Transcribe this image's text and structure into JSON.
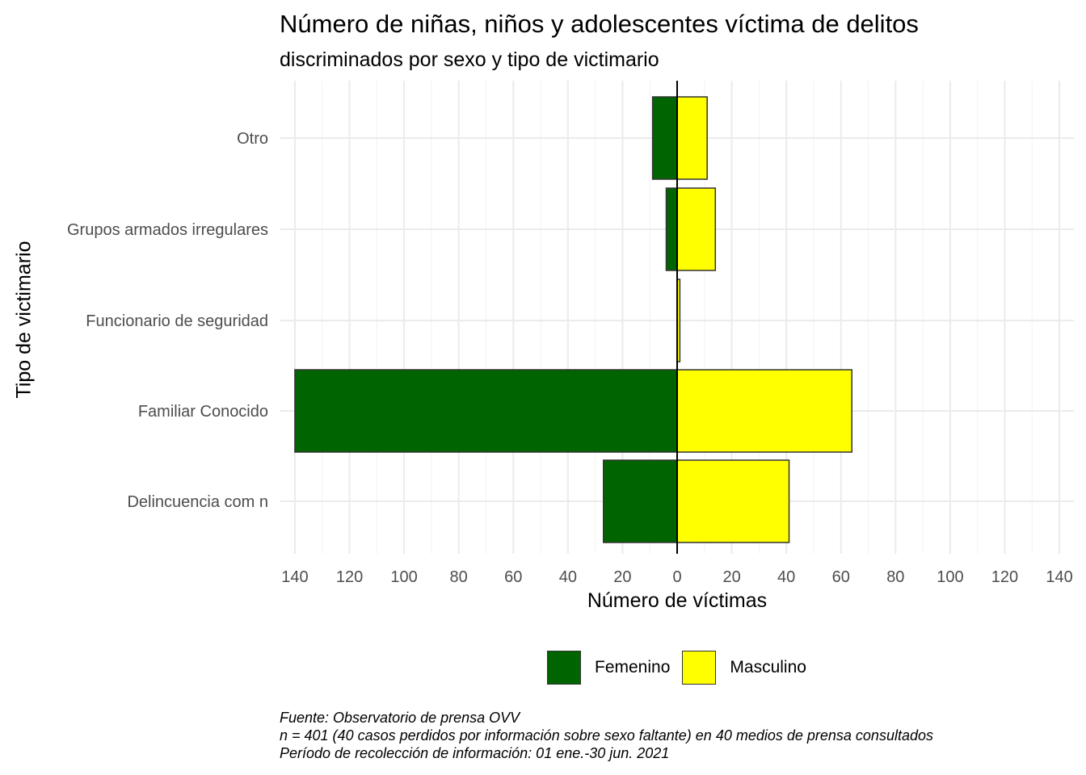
{
  "chart_data": {
    "type": "bar",
    "orientation": "horizontal",
    "title": "Número de niñas, niños y adolescentes víctima de delitos",
    "subtitle": "discriminados por sexo y tipo de victimario",
    "xlabel": "Número de víctimas",
    "ylabel": "Tipo de victimario",
    "xlim": [
      -140,
      140
    ],
    "x_ticks": [
      -140,
      -120,
      -100,
      -80,
      -60,
      -40,
      -20,
      0,
      20,
      40,
      60,
      80,
      100,
      120,
      140
    ],
    "x_tick_labels": [
      "140",
      "120",
      "100",
      "80",
      "60",
      "40",
      "20",
      "0",
      "20",
      "40",
      "60",
      "80",
      "100",
      "120",
      "140"
    ],
    "categories": [
      "Otro",
      "Grupos armados irregulares",
      "Funcionario de seguridad",
      "Familiar Conocido",
      "Delincuencia com n"
    ],
    "series": [
      {
        "name": "Femenino",
        "color": "#006400",
        "values": [
          9,
          4,
          0,
          140,
          27
        ]
      },
      {
        "name": "Masculino",
        "color": "#ffff00",
        "values": [
          11,
          14,
          1,
          64,
          41
        ]
      }
    ],
    "grid": true,
    "legend": "bottom",
    "caption": [
      "Fuente: Observatorio de prensa OVV",
      "n = 401 (40 casos perdidos por información sobre sexo faltante) en 40 medios de prensa consultados",
      "Período de recolección de información: 01 ene.-30 jun. 2021"
    ]
  }
}
